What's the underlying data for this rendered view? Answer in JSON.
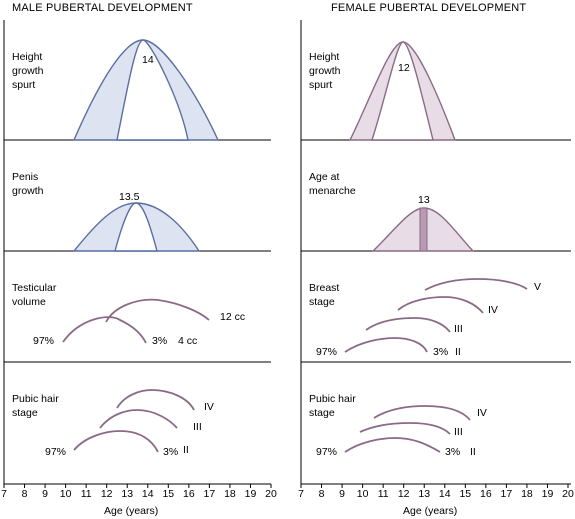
{
  "male": {
    "title": "MALE PUBERTAL DEVELOPMENT",
    "height_label": [
      "Height",
      "growth",
      "spurt"
    ],
    "height_peak": "14",
    "penis_label": [
      "Penis",
      "growth"
    ],
    "penis_peak": "13.5",
    "testis_label": [
      "Testicular",
      "volume"
    ],
    "testis_97": "97%",
    "testis_3": "3%",
    "testis_12cc": "12 cc",
    "testis_4cc": "4 cc",
    "pubic_label": [
      "Pubic hair",
      "stage"
    ],
    "pubic_97": "97%",
    "pubic_3": "3%",
    "pubic_stages": [
      "IV",
      "III",
      "II"
    ]
  },
  "female": {
    "title": "FEMALE PUBERTAL DEVELOPMENT",
    "height_label": [
      "Height",
      "growth",
      "spurt"
    ],
    "height_peak": "12",
    "menarche_label": [
      "Age at",
      "menarche"
    ],
    "menarche_peak": "13",
    "breast_label": [
      "Breast",
      "stage"
    ],
    "breast_97": "97%",
    "breast_3": "3%",
    "breast_stages": [
      "V",
      "IV",
      "III",
      "II"
    ],
    "pubic_label": [
      "Pubic hair",
      "stage"
    ],
    "pubic_97": "97%",
    "pubic_3": "3%",
    "pubic_stages": [
      "IV",
      "III",
      "II"
    ]
  },
  "axis": {
    "xlabel": "Age (years)",
    "ticks": [
      "7",
      "8",
      "9",
      "10",
      "11",
      "12",
      "13",
      "14",
      "15",
      "16",
      "17",
      "18",
      "19",
      "20"
    ]
  },
  "colors": {
    "male_line": "#5a6ea0",
    "male_fill": "#dde3f0",
    "female_line": "#8a6a85",
    "female_fill": "#e8dde6",
    "female_bar": "#b89ab2"
  }
}
